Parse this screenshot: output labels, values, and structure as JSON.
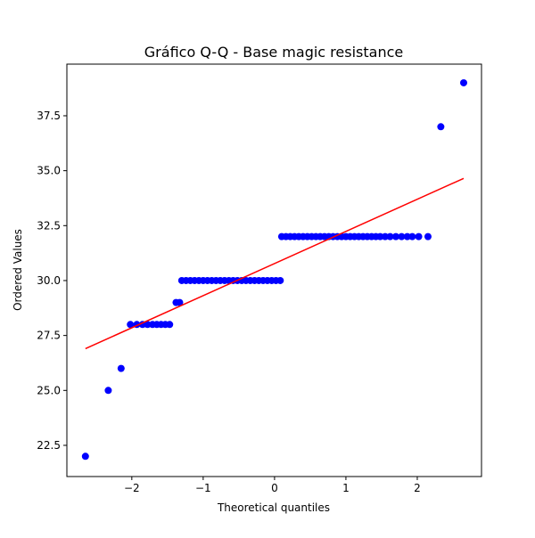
{
  "chart_data": {
    "type": "scatter",
    "title": "Gráfico Q-Q - Base magic resistance",
    "x_label": "Theoretical quantiles",
    "y_label": "Ordered Values",
    "series": [
      {
        "color": "#0000ff",
        "x": [
          -2.65,
          -2.33,
          -2.15,
          -2.02,
          -1.93,
          -1.85,
          -1.78,
          -1.71,
          -1.65,
          -1.59,
          -1.53,
          -1.47,
          -1.38,
          -1.33,
          -1.3,
          -1.24,
          -1.18,
          -1.12,
          -1.06,
          -1.0,
          -0.94,
          -0.88,
          -0.82,
          -0.76,
          -0.7,
          -0.64,
          -0.58,
          -0.52,
          -0.46,
          -0.4,
          -0.34,
          -0.28,
          -0.22,
          -0.16,
          -0.1,
          -0.04,
          0.02,
          0.08,
          0.1,
          0.16,
          0.22,
          0.28,
          0.34,
          0.4,
          0.46,
          0.52,
          0.58,
          0.64,
          0.7,
          0.76,
          0.82,
          0.88,
          0.94,
          1.0,
          1.06,
          1.12,
          1.18,
          1.24,
          1.3,
          1.36,
          1.42,
          1.48,
          1.55,
          1.62,
          1.7,
          1.78,
          1.86,
          1.93,
          2.02,
          2.15,
          2.33,
          2.65
        ],
        "values": [
          22,
          25,
          26,
          28,
          28,
          28,
          28,
          28,
          28,
          28,
          28,
          28,
          29,
          29,
          30,
          30,
          30,
          30,
          30,
          30,
          30,
          30,
          30,
          30,
          30,
          30,
          30,
          30,
          30,
          30,
          30,
          30,
          30,
          30,
          30,
          30,
          30,
          30,
          32,
          32,
          32,
          32,
          32,
          32,
          32,
          32,
          32,
          32,
          32,
          32,
          32,
          32,
          32,
          32,
          32,
          32,
          32,
          32,
          32,
          32,
          32,
          32,
          32,
          32,
          32,
          32,
          32,
          32,
          32,
          32,
          37,
          39
        ]
      }
    ],
    "fit_line": {
      "color": "#ff0000",
      "x": [
        -2.65,
        2.65
      ],
      "values": [
        26.9,
        34.65
      ]
    },
    "xlim": [
      -2.91,
      2.9
    ],
    "ylim": [
      21.08,
      39.85
    ],
    "xticks": [
      {
        "value": -2,
        "label": "−2"
      },
      {
        "value": -1,
        "label": "−1"
      },
      0,
      1,
      2
    ],
    "yticks": [
      22.5,
      {
        "value": 25,
        "label": "25.0"
      },
      27.5,
      {
        "value": 30,
        "label": "30.0"
      },
      32.5,
      {
        "value": 35,
        "label": "35.0"
      },
      37.5
    ]
  }
}
